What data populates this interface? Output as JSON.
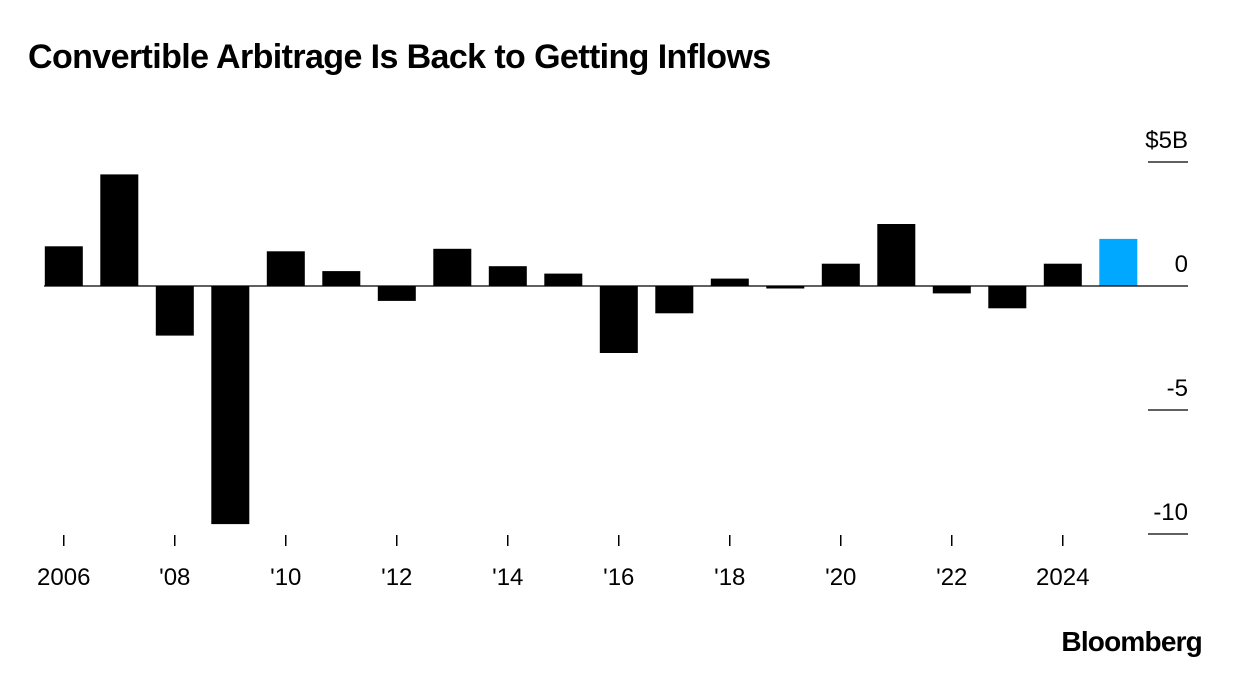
{
  "title": "Convertible Arbitrage Is Back to Getting Inflows",
  "source": "Bloomberg",
  "colors": {
    "bar": "#000000",
    "highlight": "#00a8ff",
    "axis": "#000000"
  },
  "chart_data": {
    "type": "bar",
    "title": "Convertible Arbitrage Is Back to Getting Inflows",
    "xlabel": "",
    "ylabel": "",
    "categories": [
      "2006",
      "2007",
      "2008",
      "2009",
      "2010",
      "2011",
      "2012",
      "2013",
      "2014",
      "2015",
      "2016",
      "2017",
      "2018",
      "2019",
      "2020",
      "2021",
      "2022",
      "2023",
      "2024",
      "2025"
    ],
    "values": [
      1.6,
      4.5,
      -2.0,
      -9.6,
      1.4,
      0.6,
      -0.6,
      1.5,
      0.8,
      0.5,
      -2.7,
      -1.1,
      0.3,
      -0.1,
      0.9,
      2.5,
      -0.3,
      -0.9,
      0.9,
      1.9
    ],
    "highlight_index": 19,
    "ylim": [
      -10,
      5
    ],
    "y_ticks": [
      5,
      0,
      -5,
      -10
    ],
    "y_tick_labels": [
      "$5B",
      "0",
      "-5",
      "-10"
    ],
    "x_tick_labels": [
      "2006",
      "'08",
      "'10",
      "'12",
      "'14",
      "'16",
      "'18",
      "'20",
      "'22",
      "2024"
    ],
    "x_tick_categories": [
      "2006",
      "2008",
      "2010",
      "2012",
      "2014",
      "2016",
      "2018",
      "2020",
      "2022",
      "2024"
    ],
    "grid": false,
    "legend": "none"
  }
}
